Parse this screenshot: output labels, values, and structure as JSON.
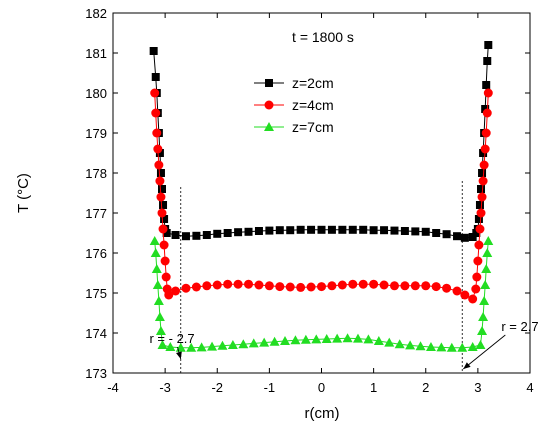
{
  "chart_data": {
    "type": "scatter",
    "title": "t = 1800 s",
    "xlabel": "r(cm)",
    "ylabel": "T (°C)",
    "xlim": [
      -4,
      4
    ],
    "ylim": [
      173,
      182
    ],
    "xticks": [
      -4,
      -3,
      -2,
      -1,
      0,
      1,
      2,
      3,
      4
    ],
    "yticks": [
      173,
      174,
      175,
      176,
      177,
      178,
      179,
      180,
      181,
      182
    ],
    "grid": false,
    "legend_position": "upper-center",
    "series": [
      {
        "name": "z=2cm",
        "color": "#000000",
        "marker": "square",
        "points": [
          [
            -3.22,
            181.05
          ],
          [
            -3.18,
            180.4
          ],
          [
            -3.16,
            180.0
          ],
          [
            -3.14,
            179.5
          ],
          [
            -3.12,
            179.0
          ],
          [
            -3.1,
            178.5
          ],
          [
            -3.08,
            178.0
          ],
          [
            -3.06,
            177.6
          ],
          [
            -3.04,
            177.2
          ],
          [
            -3.02,
            176.85
          ],
          [
            -3.0,
            176.6
          ],
          [
            -2.97,
            176.5
          ],
          [
            -2.8,
            176.45
          ],
          [
            -2.6,
            176.42
          ],
          [
            -2.4,
            176.43
          ],
          [
            -2.2,
            176.45
          ],
          [
            -2.0,
            176.48
          ],
          [
            -1.8,
            176.5
          ],
          [
            -1.6,
            176.52
          ],
          [
            -1.4,
            176.53
          ],
          [
            -1.2,
            176.55
          ],
          [
            -1.0,
            176.56
          ],
          [
            -0.8,
            176.57
          ],
          [
            -0.6,
            176.57
          ],
          [
            -0.4,
            176.58
          ],
          [
            -0.2,
            176.58
          ],
          [
            0.0,
            176.58
          ],
          [
            0.2,
            176.58
          ],
          [
            0.4,
            176.58
          ],
          [
            0.6,
            176.58
          ],
          [
            0.8,
            176.58
          ],
          [
            1.0,
            176.57
          ],
          [
            1.2,
            176.57
          ],
          [
            1.4,
            176.56
          ],
          [
            1.6,
            176.55
          ],
          [
            1.8,
            176.54
          ],
          [
            2.0,
            176.53
          ],
          [
            2.2,
            176.5
          ],
          [
            2.4,
            176.47
          ],
          [
            2.6,
            176.42
          ],
          [
            2.75,
            176.38
          ],
          [
            2.9,
            176.4
          ],
          [
            2.97,
            176.5
          ],
          [
            3.0,
            176.6
          ],
          [
            3.02,
            176.85
          ],
          [
            3.04,
            177.2
          ],
          [
            3.06,
            177.6
          ],
          [
            3.08,
            178.0
          ],
          [
            3.1,
            178.5
          ],
          [
            3.12,
            179.0
          ],
          [
            3.14,
            179.6
          ],
          [
            3.16,
            180.2
          ],
          [
            3.18,
            180.8
          ],
          [
            3.2,
            181.2
          ]
        ]
      },
      {
        "name": "z=4cm",
        "color": "#ff0000",
        "marker": "circle",
        "points": [
          [
            -3.2,
            180.0
          ],
          [
            -3.18,
            179.5
          ],
          [
            -3.16,
            179.0
          ],
          [
            -3.14,
            178.6
          ],
          [
            -3.12,
            178.2
          ],
          [
            -3.1,
            177.8
          ],
          [
            -3.08,
            177.4
          ],
          [
            -3.06,
            177.0
          ],
          [
            -3.04,
            176.6
          ],
          [
            -3.02,
            176.2
          ],
          [
            -3.0,
            175.8
          ],
          [
            -2.98,
            175.4
          ],
          [
            -2.96,
            175.1
          ],
          [
            -2.93,
            174.95
          ],
          [
            -2.8,
            175.05
          ],
          [
            -2.6,
            175.12
          ],
          [
            -2.4,
            175.15
          ],
          [
            -2.2,
            175.18
          ],
          [
            -2.0,
            175.2
          ],
          [
            -1.8,
            175.22
          ],
          [
            -1.6,
            175.22
          ],
          [
            -1.4,
            175.22
          ],
          [
            -1.2,
            175.2
          ],
          [
            -1.0,
            175.18
          ],
          [
            -0.8,
            175.16
          ],
          [
            -0.6,
            175.15
          ],
          [
            -0.4,
            175.14
          ],
          [
            -0.2,
            175.15
          ],
          [
            0.0,
            175.16
          ],
          [
            0.2,
            175.18
          ],
          [
            0.4,
            175.2
          ],
          [
            0.6,
            175.22
          ],
          [
            0.8,
            175.22
          ],
          [
            1.0,
            175.22
          ],
          [
            1.2,
            175.2
          ],
          [
            1.4,
            175.18
          ],
          [
            1.6,
            175.18
          ],
          [
            1.8,
            175.18
          ],
          [
            2.0,
            175.18
          ],
          [
            2.2,
            175.16
          ],
          [
            2.4,
            175.12
          ],
          [
            2.6,
            175.05
          ],
          [
            2.75,
            174.95
          ],
          [
            2.9,
            174.85
          ],
          [
            2.96,
            175.1
          ],
          [
            2.98,
            175.4
          ],
          [
            3.0,
            175.8
          ],
          [
            3.02,
            176.2
          ],
          [
            3.04,
            176.6
          ],
          [
            3.06,
            177.0
          ],
          [
            3.08,
            177.4
          ],
          [
            3.1,
            177.8
          ],
          [
            3.12,
            178.2
          ],
          [
            3.14,
            178.6
          ],
          [
            3.16,
            179.0
          ],
          [
            3.18,
            179.5
          ],
          [
            3.2,
            180.0
          ]
        ]
      },
      {
        "name": "z=7cm",
        "color": "#22dd22",
        "marker": "triangle",
        "points": [
          [
            -3.2,
            176.3
          ],
          [
            -3.18,
            176.0
          ],
          [
            -3.16,
            175.6
          ],
          [
            -3.14,
            175.2
          ],
          [
            -3.12,
            174.8
          ],
          [
            -3.1,
            174.4
          ],
          [
            -3.08,
            174.05
          ],
          [
            -3.05,
            173.7
          ],
          [
            -2.9,
            173.65
          ],
          [
            -2.7,
            173.63
          ],
          [
            -2.5,
            173.63
          ],
          [
            -2.3,
            173.64
          ],
          [
            -2.1,
            173.66
          ],
          [
            -1.9,
            173.68
          ],
          [
            -1.7,
            173.7
          ],
          [
            -1.5,
            173.72
          ],
          [
            -1.3,
            173.74
          ],
          [
            -1.1,
            173.76
          ],
          [
            -0.9,
            173.78
          ],
          [
            -0.7,
            173.8
          ],
          [
            -0.5,
            173.82
          ],
          [
            -0.3,
            173.83
          ],
          [
            -0.1,
            173.84
          ],
          [
            0.1,
            173.85
          ],
          [
            0.3,
            173.86
          ],
          [
            0.5,
            173.87
          ],
          [
            0.7,
            173.86
          ],
          [
            0.9,
            173.84
          ],
          [
            1.1,
            173.8
          ],
          [
            1.3,
            173.76
          ],
          [
            1.5,
            173.72
          ],
          [
            1.7,
            173.69
          ],
          [
            1.9,
            173.67
          ],
          [
            2.1,
            173.65
          ],
          [
            2.3,
            173.64
          ],
          [
            2.5,
            173.63
          ],
          [
            2.7,
            173.63
          ],
          [
            2.9,
            173.65
          ],
          [
            3.05,
            173.7
          ],
          [
            3.08,
            174.05
          ],
          [
            3.1,
            174.4
          ],
          [
            3.12,
            174.8
          ],
          [
            3.14,
            175.2
          ],
          [
            3.16,
            175.6
          ],
          [
            3.18,
            176.0
          ],
          [
            3.2,
            176.3
          ]
        ]
      }
    ],
    "reference_lines": [
      {
        "x": -2.7,
        "y_from": 173,
        "y_to": 177.65,
        "style": "dotted"
      },
      {
        "x": 2.7,
        "y_from": 173,
        "y_to": 177.8,
        "style": "dotted"
      }
    ],
    "annotations": [
      {
        "text": "r = - 2.7",
        "text_x": -3.3,
        "text_y": 173.75,
        "arrow_to_x": -2.7,
        "arrow_to_y": 173.35
      },
      {
        "text": "r = 2.7",
        "text_x": 3.45,
        "text_y": 174.05,
        "arrow_to_x": 2.72,
        "arrow_to_y": 173.1
      }
    ]
  }
}
